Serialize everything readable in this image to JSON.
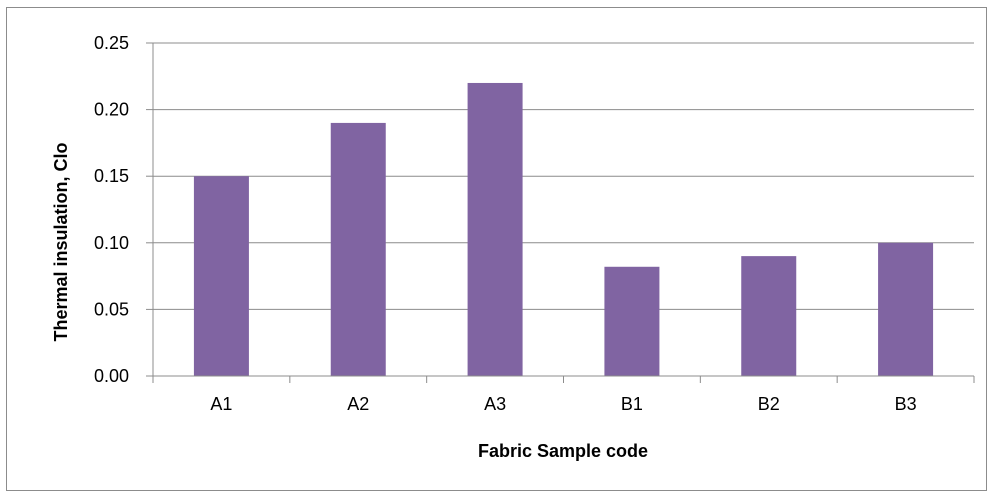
{
  "chart_data": {
    "type": "bar",
    "categories": [
      "A1",
      "A2",
      "A3",
      "B1",
      "B2",
      "B3"
    ],
    "values": [
      0.15,
      0.19,
      0.22,
      0.082,
      0.09,
      0.1
    ],
    "title": "",
    "xlabel": "Fabric Sample code",
    "ylabel": "Thermal insulation, Clo",
    "ylim": [
      0,
      0.25
    ],
    "yticks": [
      "0.00",
      "0.05",
      "0.10",
      "0.15",
      "0.20",
      "0.25"
    ],
    "grid": true,
    "legend": "none",
    "bar_color": "#8064a2",
    "grid_color": "#8c8c8c"
  }
}
